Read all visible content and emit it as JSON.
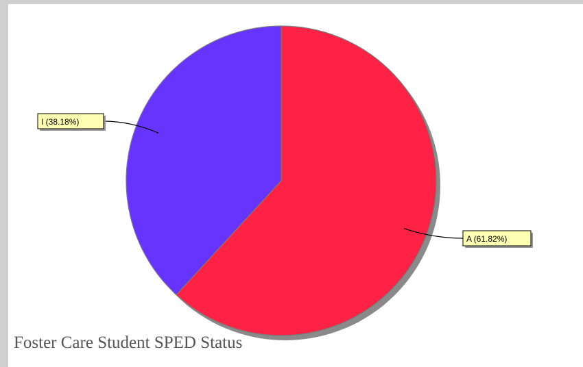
{
  "chart_data": {
    "type": "pie",
    "title": "Foster Care Student SPED Status",
    "slices": [
      {
        "name": "A",
        "label": "A (61.82%)",
        "percent": 61.82,
        "color": "#ff2244"
      },
      {
        "name": "I",
        "label": "I (38.18%)",
        "percent": 38.18,
        "color": "#6633ff"
      }
    ],
    "start_angle": "12 o'clock",
    "direction": "clockwise",
    "label_style": "yellow callout boxes",
    "shadow": true
  }
}
